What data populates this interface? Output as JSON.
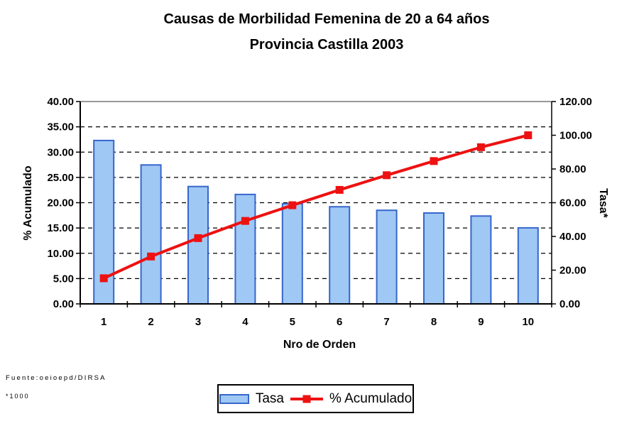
{
  "title": {
    "line1": "Causas de Morbilidad Femenina de 20 a 64 años",
    "line2": "Provincia Castilla 2003"
  },
  "chart_data": {
    "type": "pareto combo: bar + line, dual axis",
    "categories": [
      "1",
      "2",
      "3",
      "4",
      "5",
      "6",
      "7",
      "8",
      "9",
      "10"
    ],
    "series": [
      {
        "name": "Tasa",
        "type": "bar",
        "axis": "right (Tasa* x1000)",
        "values": [
          96.9,
          82.4,
          69.6,
          64.9,
          59.4,
          57.6,
          55.5,
          53.9,
          52.1,
          45.1
        ]
      },
      {
        "name": "% Acumulado",
        "type": "line",
        "axis": "right (plotted 0-120 scale)",
        "values": [
          15.2,
          28.1,
          39.0,
          49.2,
          58.5,
          67.6,
          76.3,
          84.7,
          92.9,
          100.0
        ]
      }
    ],
    "xlabel": "Nro de Orden",
    "left_axis": {
      "label": "% Acumulado",
      "min": 0,
      "max": 40,
      "step": 5,
      "tick_labels": [
        "40.00",
        "35.00",
        "30.00",
        "25.00",
        "20.00",
        "15.00",
        "10.00",
        "5.00",
        "0.00"
      ]
    },
    "right_axis": {
      "label": "Tasa*",
      "min": 0,
      "max": 120,
      "step": 20,
      "tick_labels": [
        "120.00",
        "100.00",
        "80.00",
        "60.00",
        "40.00",
        "20.00",
        "0.00"
      ]
    },
    "grid": "horizontal black dashed lines at every 5 units of left axis",
    "legend_position": "bottom center, boxed"
  },
  "legend": {
    "items": [
      {
        "label": "Tasa",
        "swatch": "light-blue bar"
      },
      {
        "label": "% Acumulado",
        "swatch": "red line with square marker"
      }
    ]
  },
  "footnotes": {
    "source": "Fuente:oeioepd/DIRSA",
    "scale": "*1000"
  },
  "colors": {
    "bar_fill": "#A0C8F4",
    "bar_border": "#3666CC",
    "line": "#EE1111",
    "grid": "#000000",
    "axis": "#000000",
    "plot_top_border": "#999999",
    "text": "#000000",
    "background": "#FFFFFF"
  }
}
